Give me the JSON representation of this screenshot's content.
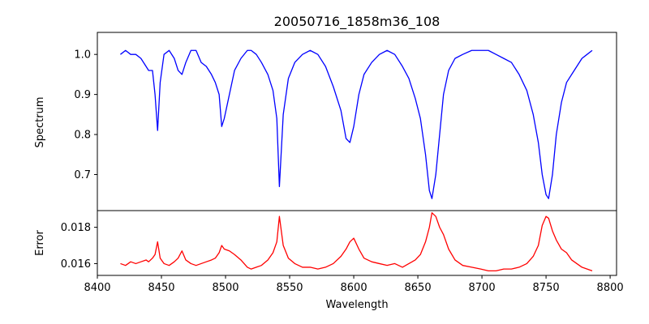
{
  "chart_data": [
    {
      "type": "line",
      "title": "20050716_1858m36_108",
      "xlabel": "",
      "ylabel": "Spectrum",
      "xlim": [
        8400,
        8805
      ],
      "ylim": [
        0.61,
        1.055
      ],
      "yticks": [
        0.7,
        0.8,
        0.9,
        1.0
      ],
      "ytick_labels": [
        "0.7",
        "0.8",
        "0.9",
        "1.0"
      ],
      "grid": false,
      "series": [
        {
          "color": "#0000ff",
          "x": [
            8418,
            8422,
            8426,
            8430,
            8434,
            8438,
            8440,
            8443,
            8445,
            8447,
            8449,
            8452,
            8456,
            8460,
            8463,
            8466,
            8469,
            8473,
            8477,
            8481,
            8485,
            8489,
            8492,
            8495,
            8497,
            8499,
            8503,
            8507,
            8512,
            8517,
            8520,
            8524,
            8528,
            8533,
            8537,
            8540,
            8542,
            8545,
            8549,
            8554,
            8560,
            8566,
            8572,
            8578,
            8584,
            8590,
            8594,
            8597,
            8600,
            8604,
            8608,
            8614,
            8620,
            8626,
            8632,
            8638,
            8643,
            8648,
            8652,
            8656,
            8659,
            8661,
            8664,
            8667,
            8670,
            8674,
            8679,
            8685,
            8692,
            8699,
            8705,
            8711,
            8717,
            8723,
            8729,
            8735,
            8740,
            8744,
            8747,
            8750,
            8752,
            8755,
            8758,
            8762,
            8766,
            8770,
            8774,
            8778,
            8782,
            8786
          ],
          "y": [
            1.0,
            1.01,
            1.0,
            1.0,
            0.99,
            0.97,
            0.96,
            0.96,
            0.9,
            0.81,
            0.93,
            1.0,
            1.01,
            0.99,
            0.96,
            0.95,
            0.98,
            1.01,
            1.01,
            0.98,
            0.97,
            0.95,
            0.93,
            0.9,
            0.82,
            0.84,
            0.9,
            0.96,
            0.99,
            1.01,
            1.01,
            1.0,
            0.98,
            0.95,
            0.91,
            0.84,
            0.67,
            0.85,
            0.94,
            0.98,
            1.0,
            1.01,
            1.0,
            0.97,
            0.92,
            0.86,
            0.79,
            0.78,
            0.82,
            0.9,
            0.95,
            0.98,
            1.0,
            1.01,
            1.0,
            0.97,
            0.94,
            0.89,
            0.84,
            0.75,
            0.66,
            0.64,
            0.7,
            0.8,
            0.9,
            0.96,
            0.99,
            1.0,
            1.01,
            1.01,
            1.01,
            1.0,
            0.99,
            0.98,
            0.95,
            0.91,
            0.85,
            0.78,
            0.7,
            0.65,
            0.64,
            0.7,
            0.8,
            0.88,
            0.93,
            0.95,
            0.97,
            0.99,
            1.0,
            1.01
          ]
        }
      ]
    },
    {
      "type": "line",
      "title": "",
      "xlabel": "Wavelength",
      "ylabel": "Error",
      "xlim": [
        8400,
        8805
      ],
      "ylim": [
        0.01535,
        0.01892
      ],
      "xticks": [
        8400,
        8450,
        8500,
        8550,
        8600,
        8650,
        8700,
        8750,
        8800
      ],
      "xtick_labels": [
        "8400",
        "8450",
        "8500",
        "8550",
        "8600",
        "8650",
        "8700",
        "8750",
        "8800"
      ],
      "yticks": [
        0.016,
        0.018
      ],
      "ytick_labels": [
        "0.016",
        "0.018"
      ],
      "grid": false,
      "series": [
        {
          "color": "#ff0000",
          "x": [
            8418,
            8422,
            8426,
            8430,
            8434,
            8438,
            8440,
            8443,
            8445,
            8447,
            8449,
            8452,
            8456,
            8460,
            8463,
            8466,
            8469,
            8473,
            8477,
            8481,
            8485,
            8489,
            8492,
            8495,
            8497,
            8499,
            8503,
            8507,
            8512,
            8517,
            8520,
            8524,
            8528,
            8533,
            8537,
            8540,
            8542,
            8545,
            8549,
            8554,
            8560,
            8566,
            8572,
            8578,
            8584,
            8590,
            8594,
            8597,
            8600,
            8604,
            8608,
            8614,
            8620,
            8626,
            8632,
            8638,
            8643,
            8648,
            8652,
            8656,
            8659,
            8661,
            8664,
            8667,
            8670,
            8674,
            8679,
            8685,
            8692,
            8699,
            8705,
            8711,
            8717,
            8723,
            8729,
            8735,
            8740,
            8744,
            8747,
            8750,
            8752,
            8755,
            8758,
            8762,
            8766,
            8770,
            8774,
            8778,
            8782,
            8786
          ],
          "y": [
            0.016,
            0.0159,
            0.0161,
            0.016,
            0.0161,
            0.0162,
            0.0161,
            0.0163,
            0.0165,
            0.0172,
            0.0163,
            0.016,
            0.0159,
            0.0161,
            0.0163,
            0.0167,
            0.0162,
            0.016,
            0.0159,
            0.016,
            0.0161,
            0.0162,
            0.0163,
            0.0166,
            0.017,
            0.0168,
            0.0167,
            0.0165,
            0.0162,
            0.0158,
            0.0157,
            0.0158,
            0.0159,
            0.0162,
            0.0166,
            0.0172,
            0.0186,
            0.017,
            0.0163,
            0.016,
            0.0158,
            0.0158,
            0.0157,
            0.0158,
            0.016,
            0.0164,
            0.0168,
            0.0172,
            0.0174,
            0.0168,
            0.0163,
            0.0161,
            0.016,
            0.0159,
            0.016,
            0.0158,
            0.016,
            0.0162,
            0.0165,
            0.0172,
            0.018,
            0.0188,
            0.0186,
            0.018,
            0.0176,
            0.0168,
            0.0162,
            0.0159,
            0.0158,
            0.0157,
            0.0156,
            0.0156,
            0.0157,
            0.0157,
            0.0158,
            0.016,
            0.0164,
            0.017,
            0.0181,
            0.0186,
            0.0185,
            0.0178,
            0.0173,
            0.0168,
            0.0166,
            0.0162,
            0.016,
            0.0158,
            0.0157,
            0.0156
          ]
        }
      ]
    }
  ]
}
